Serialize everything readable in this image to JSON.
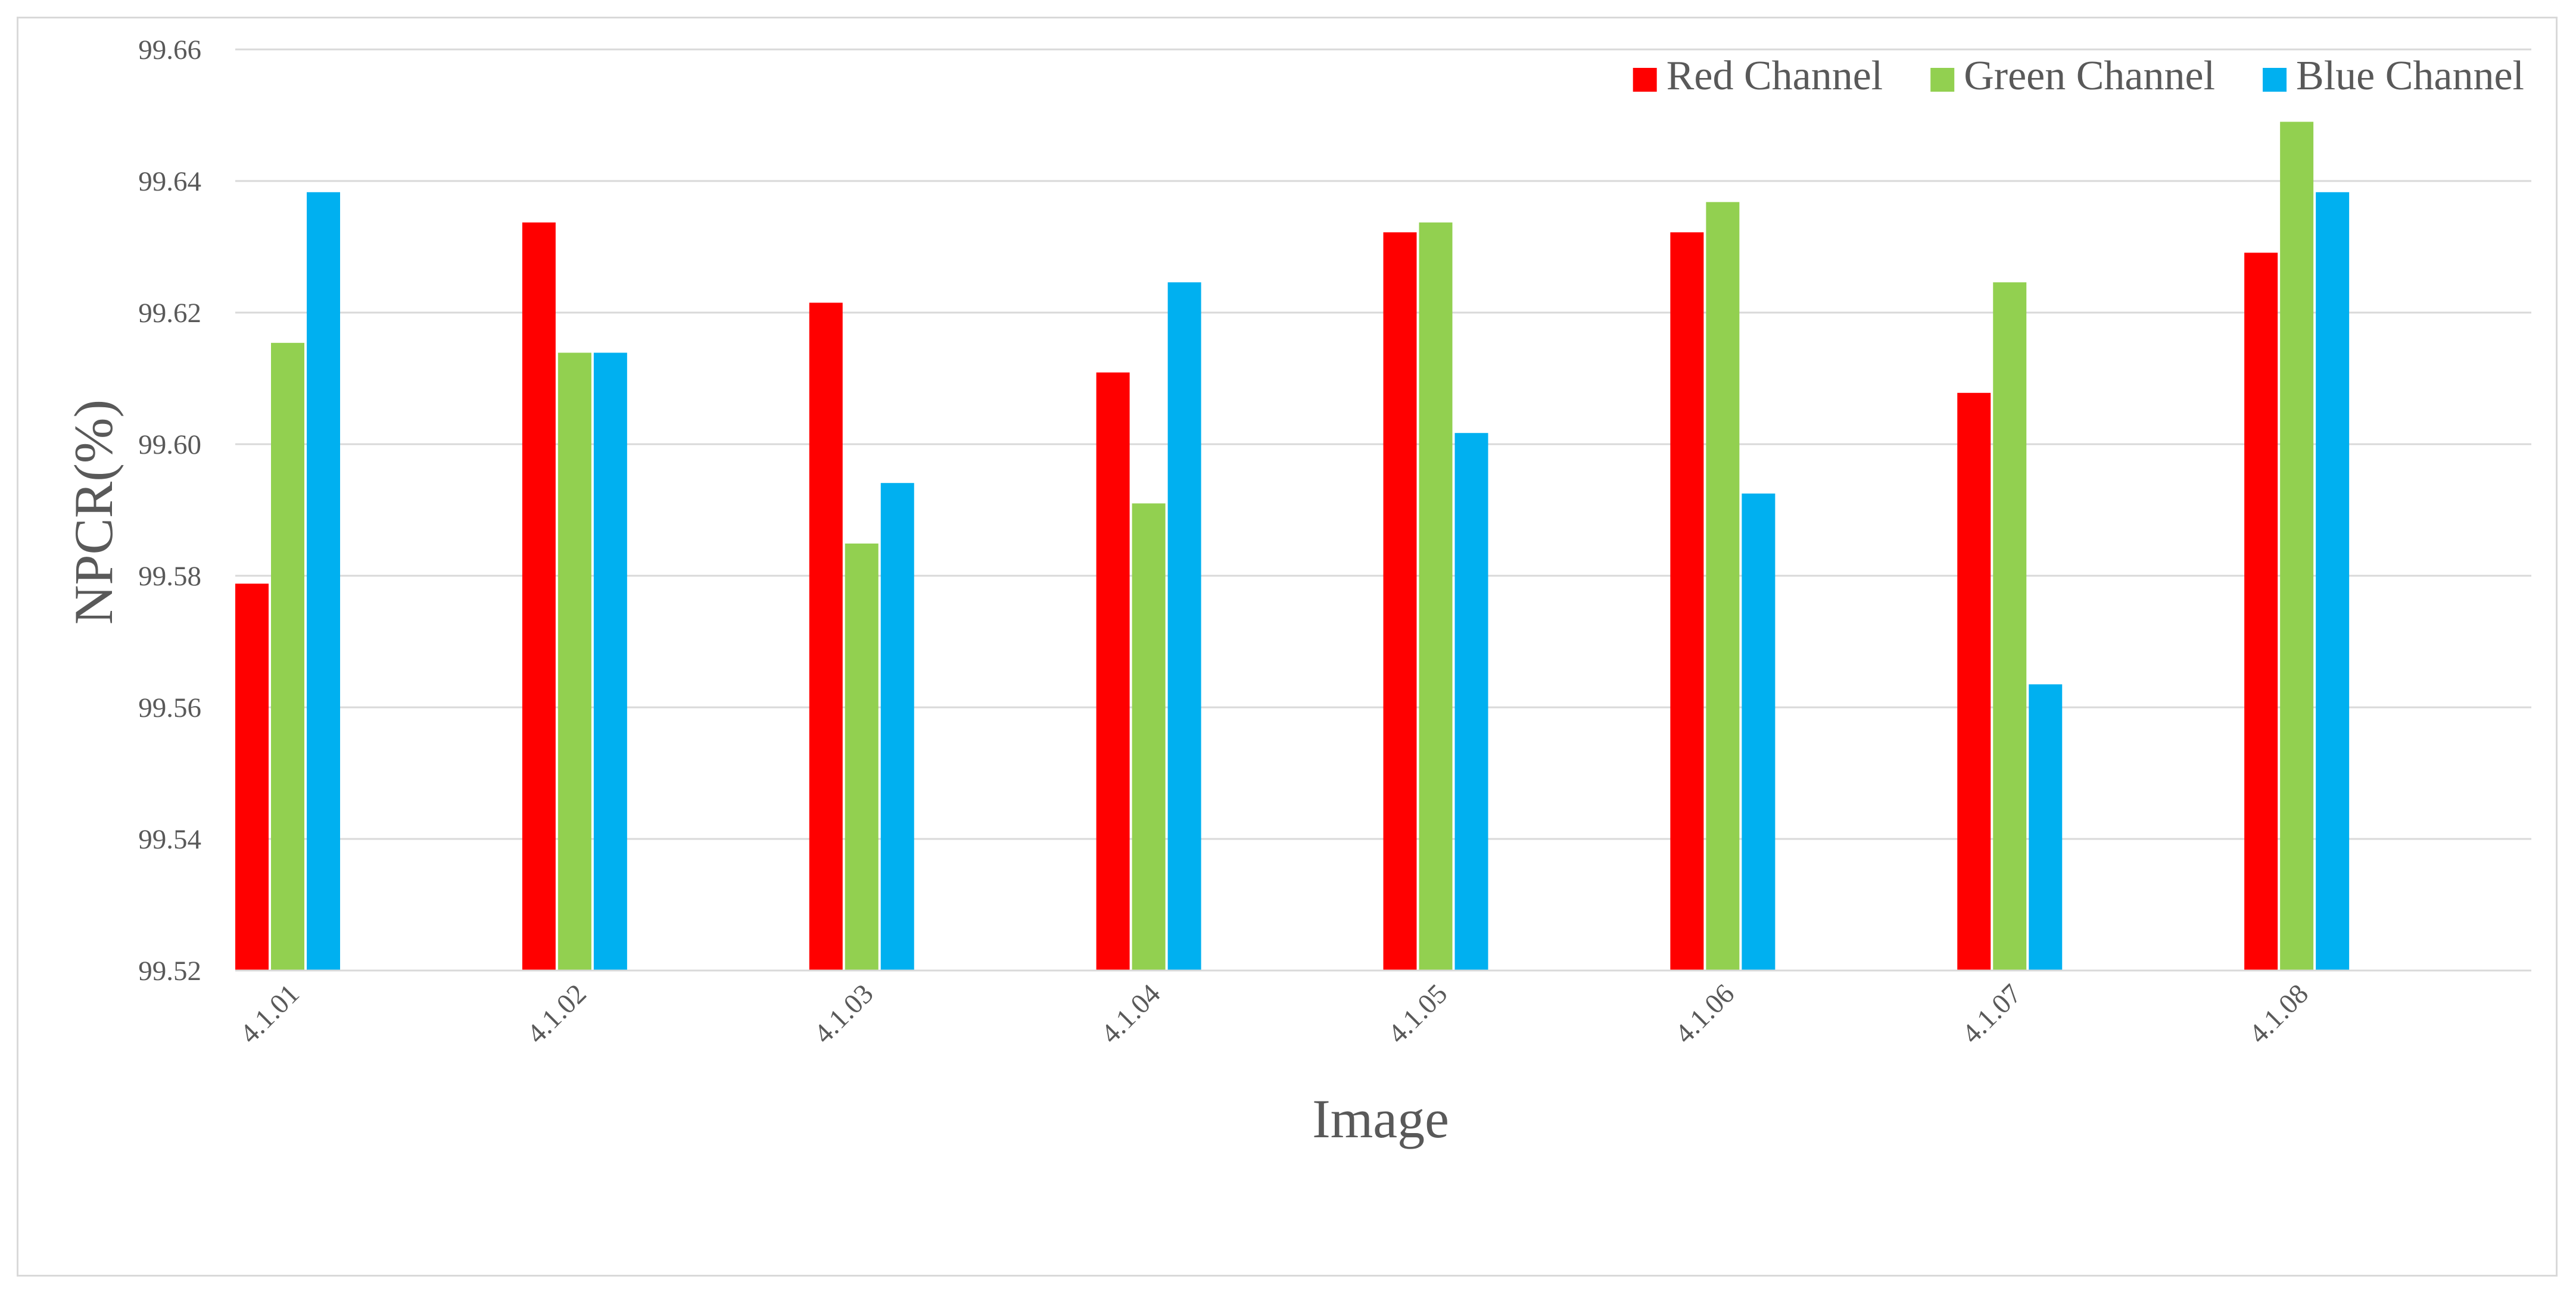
{
  "chart_data": {
    "type": "bar",
    "title": "",
    "xlabel": "Image",
    "ylabel": "NPCR(%)",
    "ylim": [
      99.52,
      99.66
    ],
    "yticks": [
      "99.52",
      "99.54",
      "99.56",
      "99.58",
      "99.60",
      "99.62",
      "99.64",
      "99.66"
    ],
    "grid": true,
    "legend_position": "top-right",
    "categories": [
      "4.1.01",
      "4.1.02",
      "4.1.03",
      "4.1.04",
      "4.1.05",
      "4.1.06",
      "4.1.07",
      "4.1.08"
    ],
    "series": [
      {
        "name": "Red Channel",
        "color": "#ff0000",
        "values": [
          99.5788,
          99.6337,
          99.6215,
          99.6109,
          99.6322,
          99.6322,
          99.6078,
          99.6291
        ]
      },
      {
        "name": "Green Channel",
        "color": "#92d050",
        "values": [
          99.6154,
          99.6139,
          99.5849,
          99.591,
          99.6337,
          99.6368,
          99.6246,
          99.649
        ]
      },
      {
        "name": "Blue Channel",
        "color": "#00b0f0",
        "values": [
          99.6383,
          99.6139,
          99.5941,
          99.6246,
          99.6017,
          99.5925,
          99.5635,
          99.6383
        ]
      }
    ]
  }
}
